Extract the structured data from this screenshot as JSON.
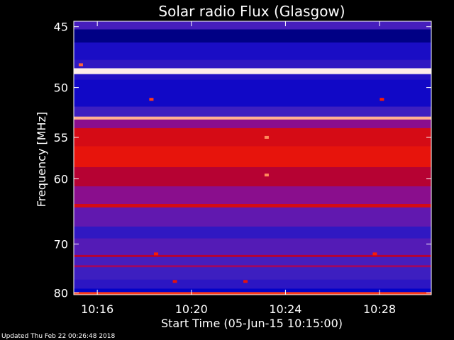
{
  "chart_data": {
    "type": "heatmap",
    "title": "Solar radio Flux (Glasgow)",
    "xlabel": "Start Time (05-Jun-15 10:15:00)",
    "ylabel": "Frequency [MHz]",
    "x_ticks": [
      "10:16",
      "10:20",
      "10:24",
      "10:28"
    ],
    "x_tick_minutes": [
      1,
      5,
      9,
      13
    ],
    "xlim_minutes": [
      0,
      15.2
    ],
    "y_ticks": [
      45,
      50,
      55,
      60,
      70,
      80
    ],
    "ylim_mhz": [
      44.6,
      80.4
    ],
    "y_scale": "reciprocal",
    "colormap": [
      "#000030",
      "#0000c8",
      "#4020c0",
      "#8010a0",
      "#c00020",
      "#ff2000",
      "#ff9060",
      "#ffffff"
    ],
    "bands": [
      {
        "from": 44.6,
        "to": 45.2,
        "level": 0.3
      },
      {
        "from": 45.2,
        "to": 46.2,
        "level": 0.08
      },
      {
        "from": 46.2,
        "to": 47.6,
        "level": 0.2
      },
      {
        "from": 47.6,
        "to": 48.3,
        "level": 0.25
      },
      {
        "from": 48.3,
        "to": 48.8,
        "level": 0.98
      },
      {
        "from": 48.8,
        "to": 49.3,
        "level": 0.22
      },
      {
        "from": 49.3,
        "to": 51.8,
        "level": 0.18
      },
      {
        "from": 51.8,
        "to": 52.8,
        "level": 0.28
      },
      {
        "from": 52.8,
        "to": 53.1,
        "level": 0.9
      },
      {
        "from": 53.1,
        "to": 54.0,
        "level": 0.45
      },
      {
        "from": 54.0,
        "to": 56.0,
        "level": 0.62
      },
      {
        "from": 56.0,
        "to": 58.5,
        "level": 0.66
      },
      {
        "from": 58.5,
        "to": 61.0,
        "level": 0.55
      },
      {
        "from": 61.0,
        "to": 63.5,
        "level": 0.45
      },
      {
        "from": 63.5,
        "to": 64.0,
        "level": 0.62
      },
      {
        "from": 64.0,
        "to": 67.0,
        "level": 0.36
      },
      {
        "from": 67.0,
        "to": 69.0,
        "level": 0.25
      },
      {
        "from": 69.0,
        "to": 72.0,
        "level": 0.33
      },
      {
        "from": 72.0,
        "to": 72.4,
        "level": 0.55
      },
      {
        "from": 72.4,
        "to": 74.0,
        "level": 0.3
      },
      {
        "from": 74.0,
        "to": 74.4,
        "level": 0.5
      },
      {
        "from": 74.4,
        "to": 77.0,
        "level": 0.28
      },
      {
        "from": 77.0,
        "to": 79.0,
        "level": 0.24
      },
      {
        "from": 79.0,
        "to": 79.8,
        "level": 0.15
      },
      {
        "from": 79.8,
        "to": 80.4,
        "level": 0.75
      }
    ],
    "bursts": [
      {
        "t": 8.2,
        "f": 55.0,
        "level": 0.85
      },
      {
        "t": 8.2,
        "f": 59.5,
        "level": 0.85
      },
      {
        "t": 3.3,
        "f": 51.1,
        "level": 0.75
      },
      {
        "t": 13.1,
        "f": 51.1,
        "level": 0.7
      },
      {
        "t": 0.3,
        "f": 48.0,
        "level": 0.8
      },
      {
        "t": 3.5,
        "f": 71.8,
        "level": 0.7
      },
      {
        "t": 12.8,
        "f": 71.8,
        "level": 0.7
      },
      {
        "t": 4.3,
        "f": 77.4,
        "level": 0.65
      },
      {
        "t": 7.3,
        "f": 77.4,
        "level": 0.65
      }
    ]
  },
  "footer": {
    "updated": "Updated Thu Feb 22 00:26:48 2018"
  }
}
